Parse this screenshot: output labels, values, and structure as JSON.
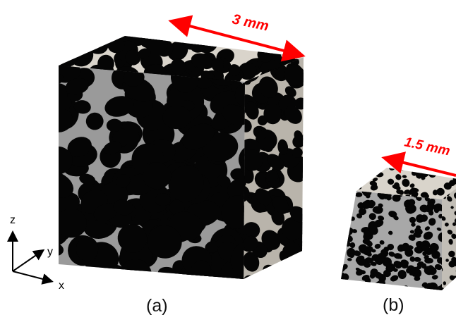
{
  "colors": {
    "pore": "#050505",
    "solid_top": "#d9d4cb",
    "solid_face": "#9a9a9a",
    "dimension": "#ff0000"
  },
  "sample_a": {
    "dimension_label": "3 mm",
    "caption": "(a)"
  },
  "sample_b": {
    "dimension_label": "1.5 mm",
    "caption": "(b)"
  },
  "axes": {
    "z_label": "z",
    "y_label": "y",
    "x_label": "x"
  }
}
